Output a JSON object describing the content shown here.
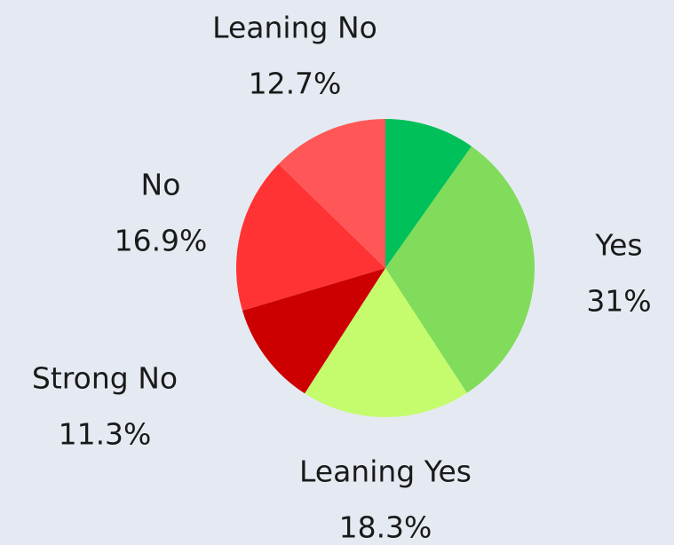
{
  "chart_data": {
    "type": "pie",
    "categories": [
      null,
      "Yes",
      "Leaning Yes",
      "Strong No",
      "No",
      "Leaning No"
    ],
    "values": [
      9.8,
      31,
      18.3,
      11.3,
      16.9,
      12.7
    ],
    "value_labels": [
      null,
      "31%",
      "18.3%",
      "11.3%",
      "16.9%",
      "12.7%"
    ],
    "colors": [
      "#00c05a",
      "#80dc5a",
      "#c4fc6e",
      "#cc0000",
      "#ff3333",
      "#ff5757"
    ]
  }
}
